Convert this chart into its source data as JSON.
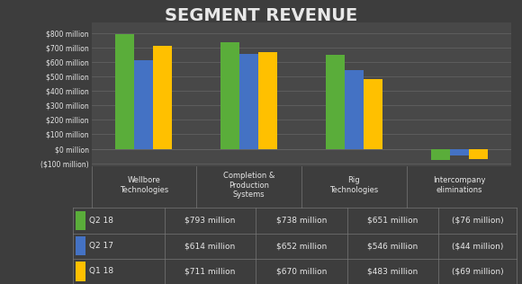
{
  "title": "SEGMENT REVENUE",
  "categories": [
    "Wellbore\nTechnologies",
    "Completion &\nProduction\nSystems",
    "Rig\nTechnologies",
    "Intercompany\neliminations"
  ],
  "series": {
    "Q2 18": [
      793,
      738,
      651,
      -76
    ],
    "Q2 17": [
      614,
      652,
      546,
      -44
    ],
    "Q1 18": [
      711,
      670,
      483,
      -69
    ]
  },
  "series_colors": {
    "Q2 18": "#5aad3a",
    "Q2 17": "#4472c4",
    "Q1 18": "#ffc000"
  },
  "legend_labels": [
    "Q2 18",
    "Q2 17",
    "Q1 18"
  ],
  "ytick_labels": [
    "($100 million)",
    "$0 million",
    "$100 million",
    "$200 million",
    "$300 million",
    "$400 million",
    "$500 million",
    "$600 million",
    "$700 million",
    "$800 million"
  ],
  "ytick_values": [
    -100,
    0,
    100,
    200,
    300,
    400,
    500,
    600,
    700,
    800
  ],
  "ylim": [
    -120,
    870
  ],
  "background_color": "#3d3d3d",
  "plot_bg_color": "#484848",
  "text_color": "#e8e8e8",
  "grid_color": "#666666",
  "title_fontsize": 14,
  "legend_data": {
    "Q2 18": [
      "$793 million",
      "$738 million",
      "$651 million",
      "($76 million)"
    ],
    "Q2 17": [
      "$614 million",
      "$652 million",
      "$546 million",
      "($44 million)"
    ],
    "Q1 18": [
      "$711 million",
      "$670 million",
      "$483 million",
      "($69 million)"
    ]
  }
}
